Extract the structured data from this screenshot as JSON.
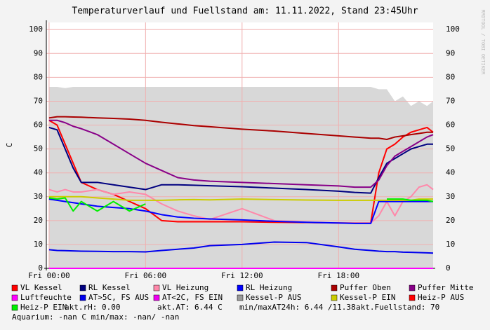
{
  "chart_data": {
    "type": "line",
    "title": "Temperaturverlauf und Fuellstand am: 11.11.2022, Stand 23:45Uhr",
    "y_label": "C",
    "watermark": "RRDTOOL / TOBI OETIKER",
    "xlim": [
      -0.17,
      23.88
    ],
    "xticks": [
      {
        "value": 0,
        "label": "Fri 00:00"
      },
      {
        "value": 6,
        "label": "Fri 06:00"
      },
      {
        "value": 12,
        "label": "Fri 12:00"
      },
      {
        "value": 18,
        "label": "Fri 18:00"
      }
    ],
    "ylim": [
      0,
      103
    ],
    "yticks": [
      0,
      10,
      20,
      30,
      40,
      50,
      60,
      70,
      80,
      90,
      100
    ],
    "grid": true,
    "x": [
      0,
      0.5,
      1,
      1.5,
      2,
      3,
      4,
      5,
      6,
      7,
      8,
      9,
      10,
      12,
      14,
      16,
      18,
      19,
      20,
      20.5,
      21,
      21.5,
      22,
      22.5,
      23,
      23.5,
      23.88
    ],
    "series": [
      {
        "name": "VL Kessel",
        "color": "#ff0000",
        "values": [
          62,
          60,
          52,
          44,
          36,
          33,
          31,
          28,
          25,
          20,
          19.5,
          19.5,
          19.5,
          19.5,
          19.3,
          19.2,
          19,
          19,
          19,
          40,
          50,
          52,
          55,
          57,
          58,
          59,
          57
        ]
      },
      {
        "name": "RL Kessel",
        "color": "#000080",
        "values": [
          59,
          58,
          50,
          42,
          36,
          36,
          35,
          34,
          33,
          35,
          35,
          34.8,
          34.6,
          34.2,
          33.6,
          33,
          32.3,
          31.8,
          31.5,
          38,
          44,
          46,
          48,
          50,
          51,
          52,
          52
        ]
      },
      {
        "name": "VL Heizung",
        "color": "#ff88aa",
        "values": [
          33,
          32,
          33,
          32,
          32,
          33,
          31,
          32,
          31,
          27,
          24,
          22,
          20.5,
          25,
          20,
          19.3,
          19,
          19,
          19,
          22,
          28,
          22,
          28,
          30,
          34,
          35,
          33
        ]
      },
      {
        "name": "RL Heizung",
        "color": "#0000ff",
        "values": [
          29,
          28.5,
          28,
          27.5,
          27,
          26,
          25.5,
          25,
          24,
          22.5,
          21.5,
          21,
          20.7,
          20.3,
          19.7,
          19.3,
          19,
          18.8,
          18.8,
          28,
          28,
          28,
          28,
          28,
          28,
          28,
          28
        ]
      },
      {
        "name": "Puffer Oben",
        "color": "#aa0000",
        "values": [
          63,
          63.5,
          63.5,
          63.4,
          63.3,
          63,
          62.8,
          62.5,
          62,
          61.2,
          60.5,
          59.8,
          59.3,
          58.3,
          57.5,
          56.5,
          55.5,
          55,
          54.5,
          54.5,
          54,
          55,
          55.5,
          56,
          56.5,
          57,
          57
        ]
      },
      {
        "name": "Puffer Mitte",
        "color": "#880088",
        "values": [
          62,
          62,
          61,
          59.5,
          58.5,
          56,
          52,
          48,
          44,
          41,
          38,
          37,
          36.5,
          36,
          35.5,
          35,
          34.5,
          34,
          34,
          37,
          43,
          47,
          49,
          51,
          53,
          55,
          56
        ]
      },
      {
        "name": "Luftfeuchte",
        "color": "#ff00ff",
        "values": [
          0,
          0,
          0,
          0,
          0,
          0,
          0,
          0,
          0,
          0,
          0,
          0,
          0,
          0,
          0,
          0,
          0,
          0,
          0,
          0,
          0,
          0,
          0,
          0,
          0,
          0,
          0
        ]
      },
      {
        "name": "AT>5C, FS AUS",
        "color": "#0000ee",
        "values": [
          7.8,
          7.5,
          7.4,
          7.3,
          7.2,
          7.1,
          7,
          7,
          6.9,
          7.5,
          8,
          8.5,
          9.5,
          10,
          11,
          10.8,
          9,
          8,
          7.5,
          7.2,
          7,
          7,
          6.8,
          6.7,
          6.6,
          6.5,
          6.4
        ]
      },
      {
        "name": "AT<2C, FS EIN",
        "color": "#ee00ee",
        "values": [
          null,
          null,
          null,
          null,
          null,
          null,
          null,
          null,
          null,
          null,
          null,
          null,
          null,
          null,
          null,
          null,
          null,
          null,
          null,
          null,
          null,
          null,
          null,
          null,
          null,
          null,
          null
        ]
      },
      {
        "name": "Kessel-P AUS",
        "color": "#999999",
        "area": true,
        "values": [
          76,
          76,
          75.5,
          76,
          76,
          76,
          76,
          76,
          76,
          76,
          76,
          76,
          76,
          76,
          76,
          76,
          76,
          76,
          76,
          75,
          75,
          70,
          72,
          68,
          70,
          68,
          70
        ]
      },
      {
        "name": "Kessel-P EIN",
        "color": "#cccc00",
        "values": [
          30,
          30,
          30,
          30,
          30,
          29.5,
          29,
          28.5,
          28.5,
          28.5,
          28.7,
          28.8,
          28.7,
          29,
          28.8,
          28.6,
          28.5,
          28.5,
          28.5,
          28.5,
          28.5,
          28.5,
          28.5,
          28.5,
          29,
          29,
          29
        ]
      },
      {
        "name": "Heiz-P AUS",
        "color": "#ff0000",
        "values": [
          null,
          null,
          null,
          null,
          null,
          null,
          null,
          null,
          null,
          null,
          null,
          null,
          null,
          null,
          null,
          null,
          null,
          null,
          null,
          null,
          null,
          null,
          null,
          null,
          null,
          null,
          null
        ]
      },
      {
        "name": "Heiz-P EIN",
        "color": "#00ee00",
        "values": [
          29.5,
          29,
          29.5,
          24,
          28,
          24,
          28,
          24,
          27,
          null,
          null,
          null,
          null,
          null,
          null,
          null,
          null,
          null,
          null,
          null,
          29,
          29,
          29,
          28.5,
          28.5,
          28.5,
          28
        ]
      }
    ],
    "status": [
      "akt.rH: 0.00",
      "akt.AT: 6.44 C",
      "min/maxAT24h: 6.44 /11.38",
      "akt.Fuellstand:   70"
    ],
    "footer": "Aquarium: -nan C  min/max: -nan/ -nan"
  }
}
